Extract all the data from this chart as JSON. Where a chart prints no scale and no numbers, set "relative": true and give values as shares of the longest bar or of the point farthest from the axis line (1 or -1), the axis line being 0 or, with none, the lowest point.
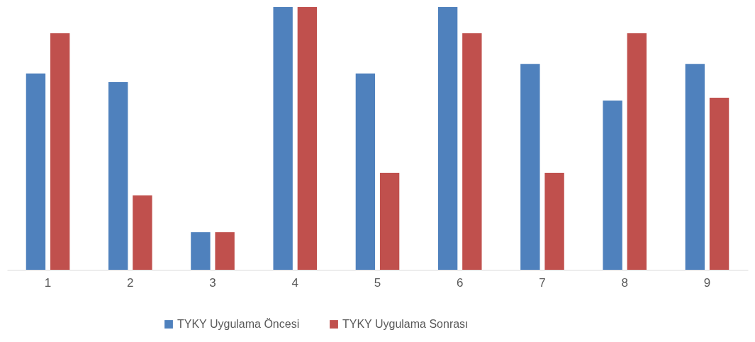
{
  "chart_data": {
    "type": "bar",
    "relative": true,
    "categories": [
      "1",
      "2",
      "3",
      "4",
      "5",
      "6",
      "7",
      "8",
      "9"
    ],
    "legend": "bottom",
    "series": [
      {
        "name": "TYKY Uygulama Öncesi",
        "color": "#4f81bd",
        "values": [
          0.747,
          0.714,
          0.143,
          1,
          0.747,
          1,
          0.784,
          0.644,
          0.784
        ]
      },
      {
        "name": "TYKY Uygulama Sonrası",
        "color": "#c0504d",
        "values": [
          0.9,
          0.283,
          0.143,
          1,
          0.369,
          0.9,
          0.369,
          0.9,
          0.655
        ]
      }
    ]
  }
}
